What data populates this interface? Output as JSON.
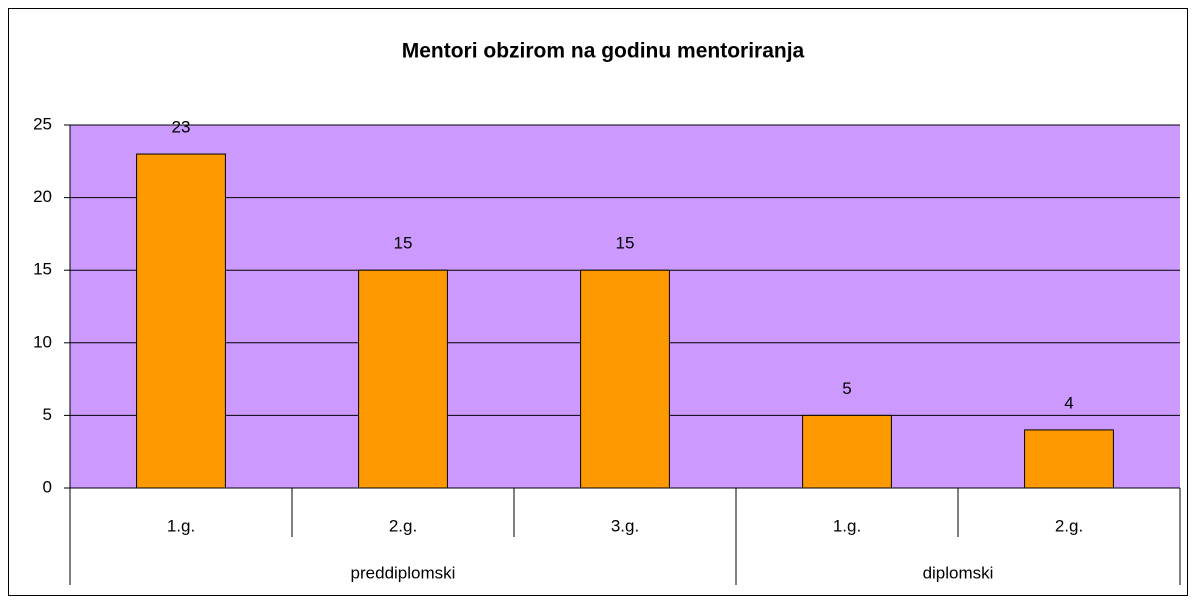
{
  "chart_data": {
    "type": "bar",
    "title": "Mentori obzirom na godinu mentoriranja",
    "groups": [
      {
        "name": "preddiplomski",
        "categories": [
          "1.g.",
          "2.g.",
          "3.g."
        ],
        "values": [
          23,
          15,
          15
        ]
      },
      {
        "name": "diplomski",
        "categories": [
          "1.g.",
          "2.g."
        ],
        "values": [
          5,
          4
        ]
      }
    ],
    "color": "#ff9900",
    "plot_background": "#cc99ff",
    "ylim": [
      0,
      25
    ],
    "yticks": [
      0,
      5,
      10,
      15,
      20,
      25
    ],
    "grid": true
  }
}
